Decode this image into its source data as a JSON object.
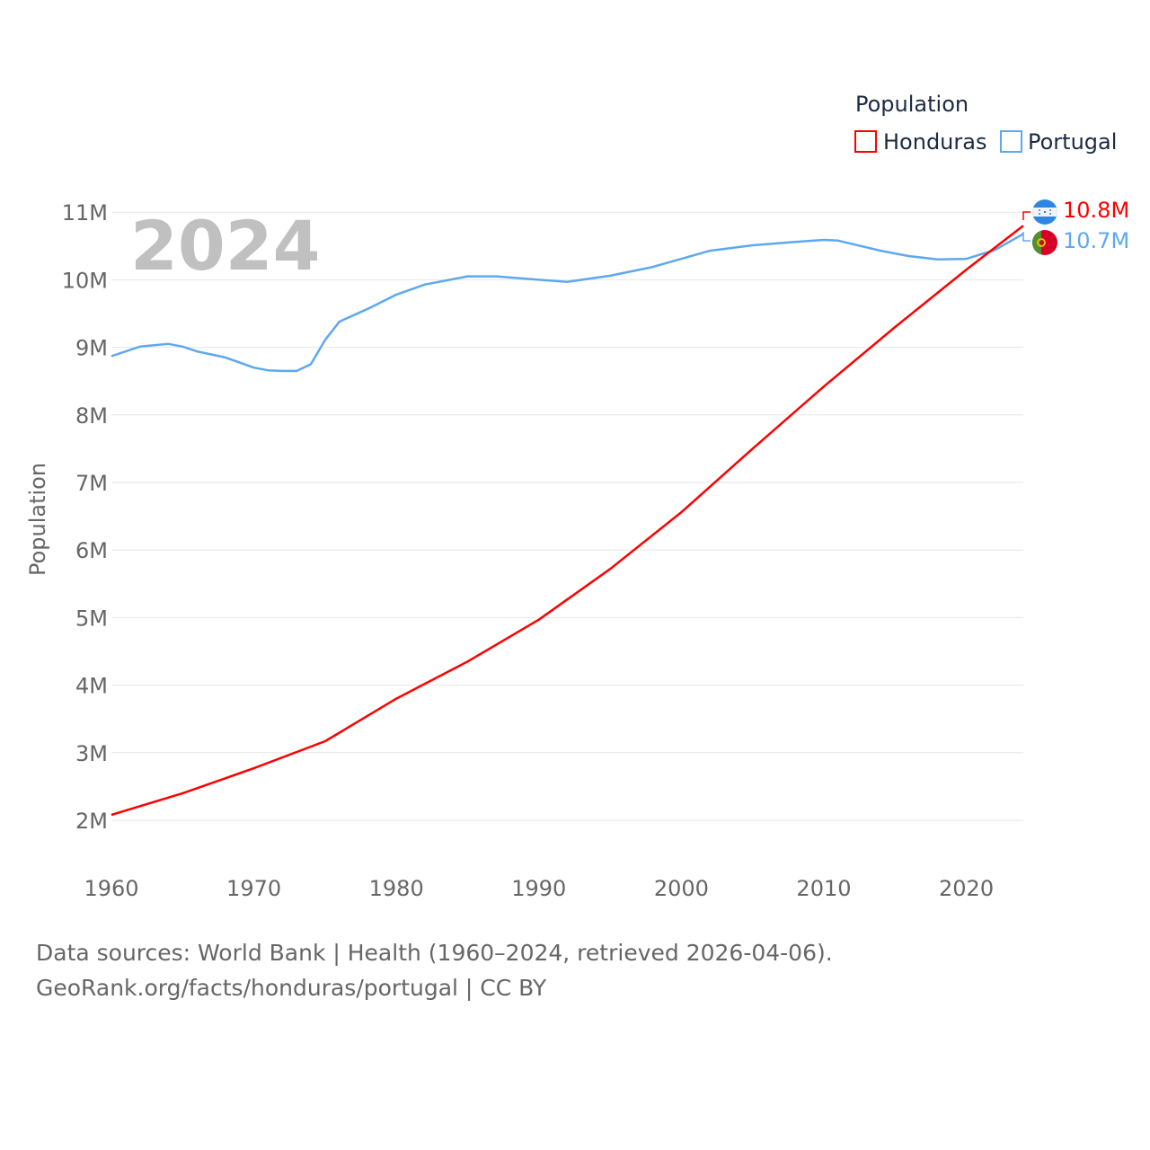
{
  "chart_data": {
    "type": "line",
    "title": "Population",
    "year_label": "2024",
    "ylabel": "Population",
    "xlabel": "",
    "xlim": [
      1960,
      2024
    ],
    "ylim": [
      2000000,
      11000000
    ],
    "x_ticks": [
      "1960",
      "1970",
      "1980",
      "1990",
      "2000",
      "2010",
      "2020"
    ],
    "y_ticks": [
      "2M",
      "3M",
      "4M",
      "5M",
      "6M",
      "7M",
      "8M",
      "9M",
      "10M",
      "11M"
    ],
    "grid": true,
    "legend_position": "top-right",
    "series": [
      {
        "name": "Honduras",
        "color": "#ff0000",
        "end_label": "10.8M",
        "x": [
          1960,
          1965,
          1970,
          1975,
          1980,
          1985,
          1990,
          1995,
          2000,
          2005,
          2010,
          2015,
          2020,
          2024
        ],
        "values": [
          2.08,
          2.4,
          2.77,
          3.17,
          3.8,
          4.35,
          4.97,
          5.72,
          6.56,
          7.5,
          8.42,
          9.3,
          10.15,
          10.8
        ]
      },
      {
        "name": "Portugal",
        "color": "#5ea8ee",
        "end_label": "10.7M",
        "x": [
          1960,
          1962,
          1964,
          1965,
          1966,
          1968,
          1970,
          1971,
          1972,
          1973,
          1974,
          1975,
          1976,
          1978,
          1980,
          1982,
          1985,
          1987,
          1990,
          1992,
          1995,
          1998,
          2000,
          2002,
          2005,
          2008,
          2010,
          2011,
          2014,
          2016,
          2018,
          2020,
          2022,
          2024
        ],
        "values": [
          8.87,
          9.01,
          9.05,
          9.01,
          8.94,
          8.85,
          8.7,
          8.66,
          8.65,
          8.65,
          8.75,
          9.11,
          9.38,
          9.57,
          9.78,
          9.93,
          10.05,
          10.05,
          10.0,
          9.97,
          10.06,
          10.19,
          10.31,
          10.43,
          10.51,
          10.56,
          10.59,
          10.58,
          10.43,
          10.35,
          10.3,
          10.31,
          10.44,
          10.68
        ]
      }
    ]
  },
  "footer": {
    "line1": "Data sources: World Bank | Health (1960–2024, retrieved 2026-04-06).",
    "line2": "GeoRank.org/facts/honduras/portugal | CC BY"
  }
}
